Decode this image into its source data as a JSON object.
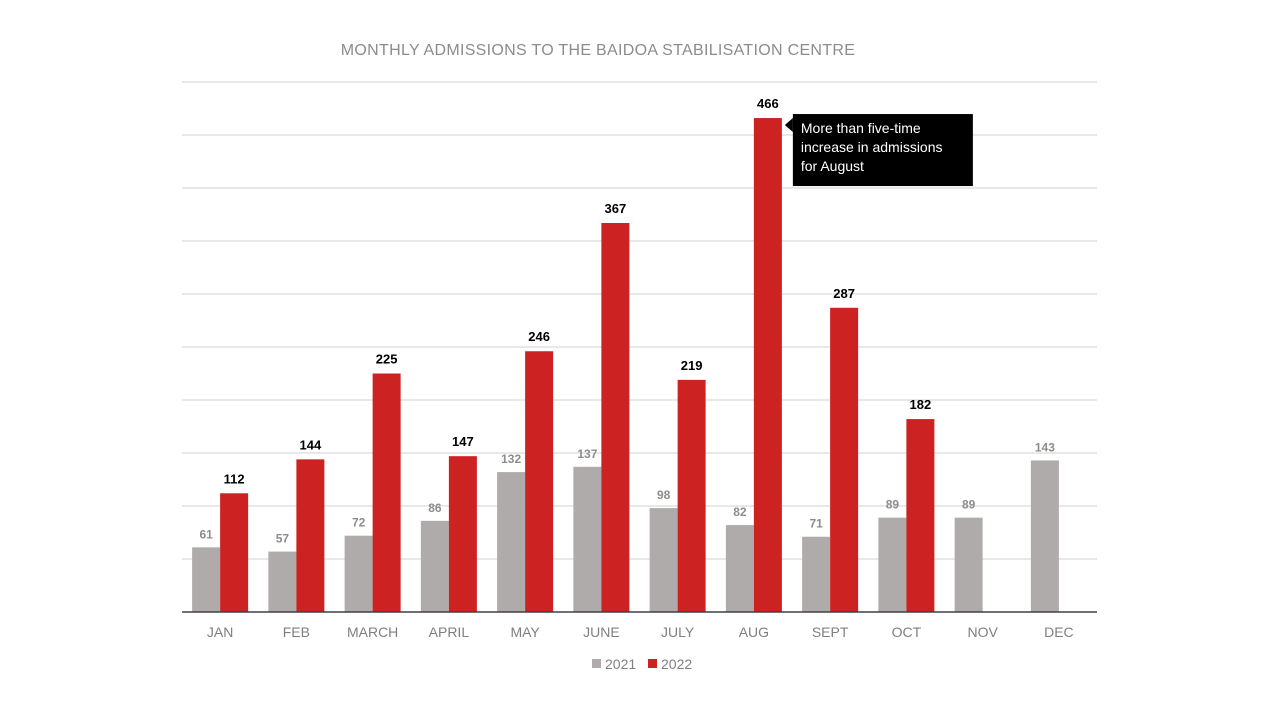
{
  "chart_data": {
    "type": "bar",
    "title": "MONTHLY ADMISSIONS TO THE BAIDOA STABILISATION CENTRE",
    "xlabel": "",
    "ylabel": "",
    "ylim": [
      0,
      500
    ],
    "grid": true,
    "legend_position": "bottom",
    "categories": [
      "JAN",
      "FEB",
      "MARCH",
      "APRIL",
      "MAY",
      "JUNE",
      "JULY",
      "AUG",
      "SEPT",
      "OCT",
      "NOV",
      "DEC"
    ],
    "series": [
      {
        "name": "2021",
        "color": "#b0abab",
        "values": [
          61,
          57,
          72,
          86,
          132,
          137,
          98,
          82,
          71,
          89,
          89,
          143
        ]
      },
      {
        "name": "2022",
        "color": "#cc2222",
        "values": [
          112,
          144,
          225,
          147,
          246,
          367,
          219,
          466,
          287,
          182,
          null,
          null
        ]
      }
    ],
    "annotations": [
      {
        "category": "AUG",
        "series": "2022",
        "lines": [
          "More than five-time",
          "increase in admissions",
          "for August"
        ],
        "background": "#000000"
      }
    ]
  }
}
